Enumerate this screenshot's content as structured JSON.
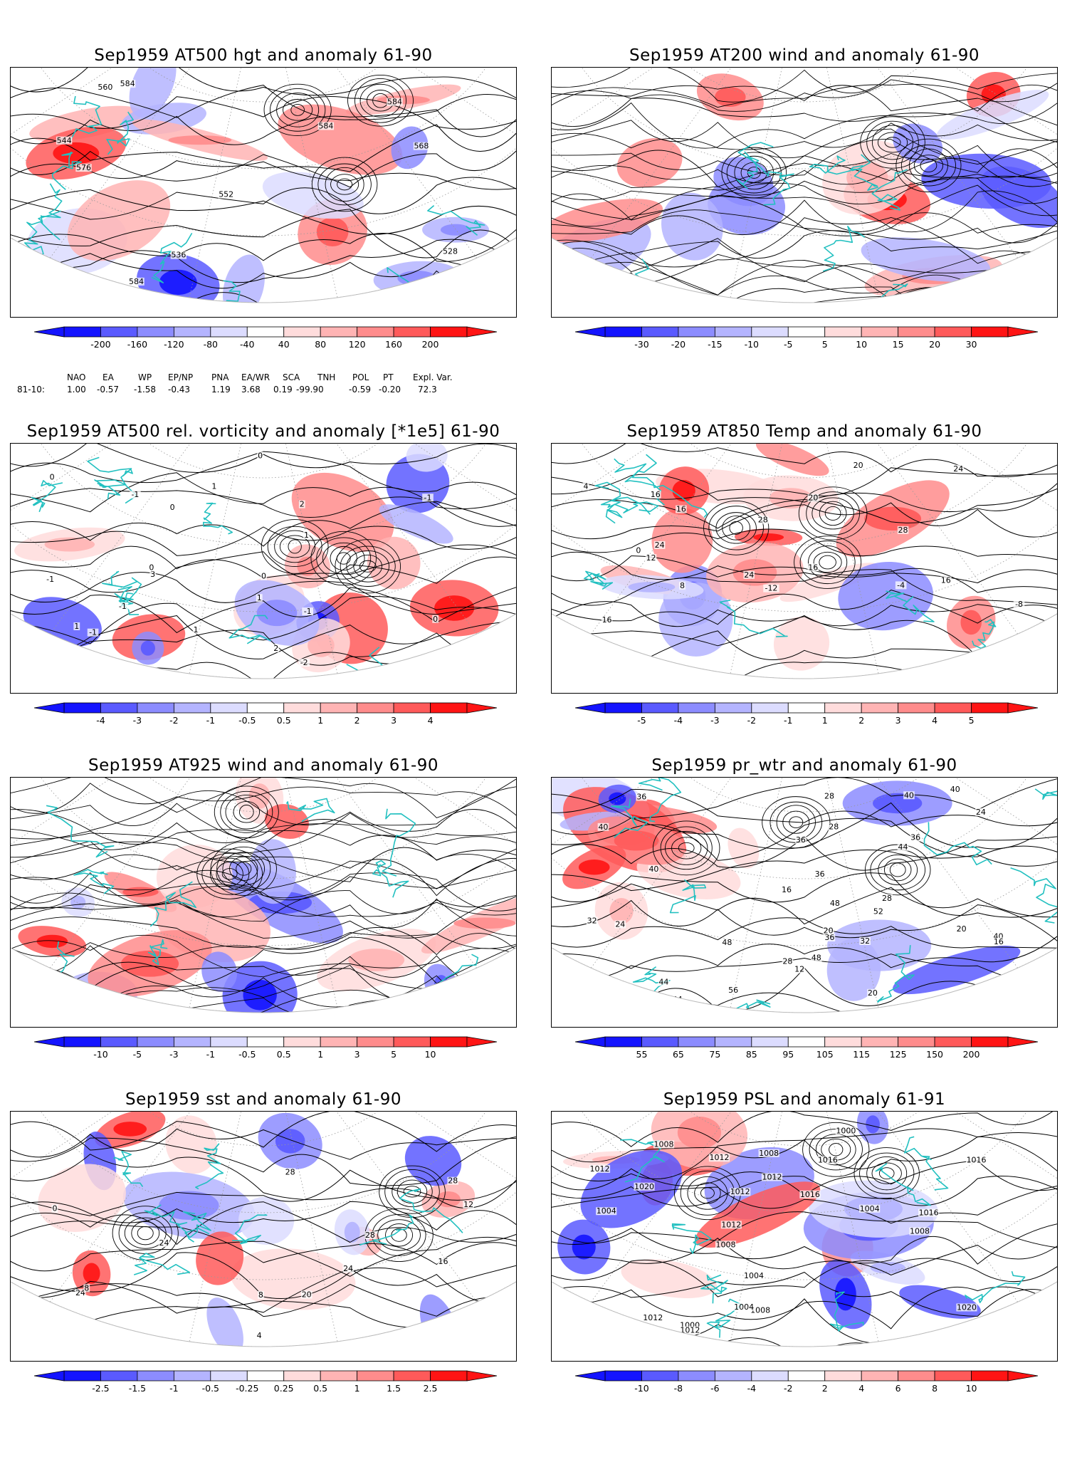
{
  "panels": [
    {
      "id": "p1",
      "title": "Sep1959 AT500 hgt and anomaly 61-90",
      "colorbar": [
        "-200",
        "-160",
        "-120",
        "-80",
        "-40",
        "40",
        "80",
        "120",
        "160",
        "200"
      ],
      "contour_labels": [
        "528",
        "536",
        "536",
        "544",
        "552",
        "560",
        "568",
        "576",
        "584",
        "584",
        "584",
        "584"
      ]
    },
    {
      "id": "p2",
      "title": "Sep1959 AT200 wind and anomaly 61-90",
      "colorbar": [
        "-30",
        "-20",
        "-15",
        "-10",
        "-5",
        "5",
        "10",
        "15",
        "20",
        "30"
      ],
      "contour_labels": []
    },
    {
      "id": "p3",
      "title": "Sep1959 AT500 rel. vorticity and anomaly [*1e5] 61-90",
      "colorbar": [
        "-4",
        "-3",
        "-2",
        "-1",
        "-0.5",
        "0.5",
        "1",
        "2",
        "3",
        "4"
      ],
      "contour_labels": [
        "-1",
        "0",
        "2",
        "3",
        "-1",
        "1",
        "0",
        "-1",
        "0",
        "1",
        "2",
        "0",
        "0",
        "-1",
        "0",
        "-1",
        "1",
        "-1",
        "-2",
        "1",
        "1"
      ]
    },
    {
      "id": "p4",
      "title": "Sep1959 AT850 Temp and anomaly 61-90",
      "colorbar": [
        "-5",
        "-4",
        "-3",
        "-2",
        "-1",
        "1",
        "2",
        "3",
        "4",
        "5"
      ],
      "contour_labels": [
        "-12",
        "-8",
        "-4",
        "0",
        "4",
        "8",
        "12",
        "16",
        "20",
        "24",
        "28",
        "16",
        "16",
        "16",
        "24",
        "20",
        "16",
        "28",
        "24"
      ]
    },
    {
      "id": "p5",
      "title": "Sep1959 AT925 wind and anomaly 61-90",
      "colorbar": [
        "-10",
        "-5",
        "-3",
        "-1",
        "-0.5",
        "0.5",
        "1",
        "3",
        "5",
        "10"
      ],
      "contour_labels": []
    },
    {
      "id": "p6",
      "title": "Sep1959 pr_wtr and anomaly 61-90",
      "colorbar": [
        "55",
        "65",
        "75",
        "85",
        "95",
        "105",
        "115",
        "125",
        "150",
        "200"
      ],
      "contour_labels": [
        "36",
        "32",
        "40",
        "48",
        "28",
        "40",
        "36",
        "40",
        "44",
        "20",
        "24",
        "16",
        "20",
        "28",
        "36",
        "44",
        "48",
        "52",
        "12",
        "16",
        "20",
        "24",
        "28",
        "32",
        "40",
        "44",
        "48",
        "56",
        "36",
        "28",
        "40",
        "36"
      ]
    },
    {
      "id": "p7",
      "title": "Sep1959 sst and anomaly 61-90",
      "colorbar": [
        "-2.5",
        "-1.5",
        "-1",
        "-0.5",
        "-0.25",
        "0.25",
        "0.5",
        "1",
        "1.5",
        "2.5"
      ],
      "contour_labels": [
        "28",
        "24",
        "8",
        "12",
        "16",
        "20",
        "24",
        "28",
        "24",
        "0",
        "4",
        "8",
        "28"
      ]
    },
    {
      "id": "p8",
      "title": "Sep1959 PSL and anomaly 61-91",
      "colorbar": [
        "-10",
        "-8",
        "-6",
        "-4",
        "-2",
        "2",
        "4",
        "6",
        "8",
        "10"
      ],
      "contour_labels": [
        "1012",
        "1016",
        "1012",
        "1008",
        "1004",
        "1000",
        "1020",
        "1016",
        "1020",
        "1008",
        "1000",
        "1004",
        "1008",
        "1016",
        "1012",
        "1008",
        "1004",
        "1012",
        "1004",
        "1008",
        "1012",
        "1012",
        "1016",
        "1012",
        "1012"
      ]
    }
  ],
  "index_table": {
    "headers": [
      "NAO",
      "EA",
      "WP",
      "EP/NP",
      "PNA",
      "EA/WR",
      "SCA",
      "TNH",
      "POL",
      "PT",
      "Expl. Var."
    ],
    "row_label": "81-10:",
    "values": [
      "1.00",
      "-0.57",
      "-1.58",
      "-0.43",
      "1.19",
      "3.68",
      "0.19",
      "-99.90",
      "-0.59",
      "-0.20",
      "72.3"
    ]
  },
  "colors": {
    "coast": "#22c0c0",
    "contour": "#000000",
    "graticule": "#999999",
    "scale": [
      "#1414ff",
      "#5a5aff",
      "#8c8cff",
      "#b4b4ff",
      "#dcdcff",
      "#ffffff",
      "#ffdcdc",
      "#ffb4b4",
      "#ff8c8c",
      "#ff5a5a",
      "#ff1414"
    ]
  }
}
